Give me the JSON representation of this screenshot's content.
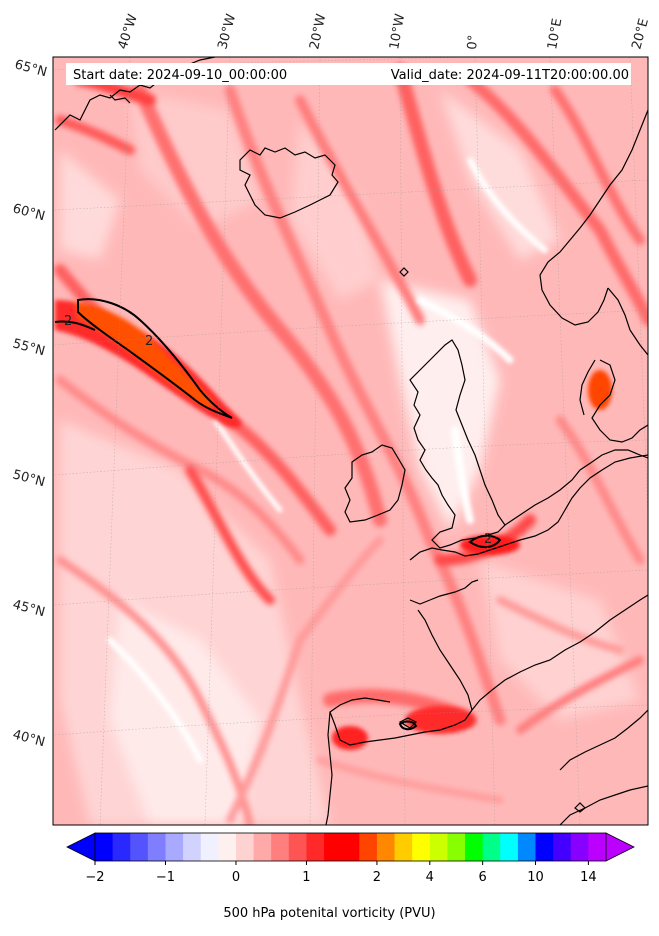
{
  "map": {
    "start_label": "Start date: 2024-09-10_00:00:00",
    "valid_label": "Valid_date: 2024-09-11T20:00:00.00",
    "lon_ticks": [
      "40°W",
      "30°W",
      "20°W",
      "10°W",
      "0°",
      "10°E",
      "20°E"
    ],
    "lat_ticks": [
      "65°N",
      "60°N",
      "55°N",
      "50°N",
      "45°N",
      "40°N"
    ],
    "contour_level_label": "2"
  },
  "colorbar": {
    "label": "500 hPa potenital vorticity (PVU)",
    "ticks": [
      "−2",
      "−1",
      "0",
      "1",
      "2",
      "4",
      "6",
      "10",
      "14"
    ],
    "colors": [
      "#0000ff",
      "#2929ff",
      "#5454ff",
      "#7e7eff",
      "#a9a9ff",
      "#d2d2ff",
      "#f0f0ff",
      "#fff0f0",
      "#ffd2d2",
      "#ffa9a9",
      "#ff7e7e",
      "#ff5454",
      "#ff2929",
      "#ff0000",
      "#ff0000",
      "#ff4400",
      "#ff8800",
      "#ffcc00",
      "#ffff00",
      "#ccff00",
      "#88ff00",
      "#00ff00",
      "#00ff88",
      "#00ffff",
      "#0088ff",
      "#0000ff",
      "#4400ff",
      "#8800ff",
      "#bb00ff"
    ],
    "extend": "both"
  }
}
